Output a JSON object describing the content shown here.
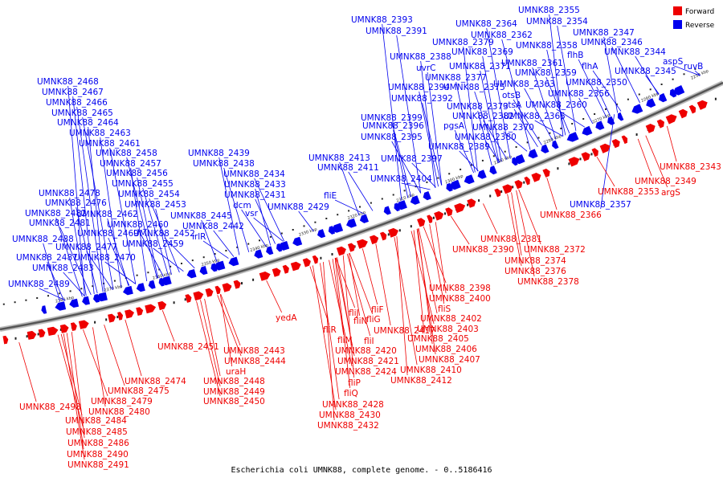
{
  "caption": "Escherichia coli UMNK88, complete genome. - 0..5186416",
  "legend": {
    "forward": {
      "label": "Forward",
      "color": "#ee0000"
    },
    "reverse": {
      "label": "Reverse",
      "color": "#0000ee"
    }
  },
  "ticks": [
    "2250 kbp",
    "2260 kbp",
    "2270 kbp",
    "2280 kbp",
    "2290 kbp",
    "2300 kbp",
    "2310 kbp",
    "2320 kbp",
    "2330 kbp",
    "2340 kbp",
    "2350 kbp",
    "2360 kbp",
    "2370 kbp",
    "2380 kbp"
  ],
  "reverse_labels": [
    "UMNK88_2355",
    "UMNK88_2354",
    "UMNK88_2364",
    "UMNK88_2362",
    "UMNK88_2347",
    "UMNK88_2393",
    "UMNK88_2391",
    "UMNK88_2346",
    "UMNK88_2379",
    "UMNK88_2358",
    "UMNK88_2344",
    "flhB",
    "UMNK88_2388",
    "UMNK88_2369",
    "ruvB",
    "aspS",
    "uvrC",
    "UMNK88_2371",
    "UMNK88_2361",
    "flhA",
    "UMNK88_2345",
    "UMNK88_2377",
    "UMNK88_2359",
    "UMNK88_2363",
    "UMNK88_2350",
    "UMNK88_2394",
    "UMNK88_2375",
    "otsB",
    "UMNK88_2356",
    "UMNK88_2392",
    "otsA",
    "UMNK88_2360",
    "UMNK88_2373",
    "UMNK88_2399",
    "UMNK88_2382",
    "UMNK88_2365",
    "UMNK88_2396",
    "pgsA",
    "UMNK88_2370",
    "UMNK88_2395",
    "UMNK88_2380",
    "UMNK88_2389",
    "UMNK88_2397",
    "UMNK88_2404",
    "UMNK88_2357",
    "UMNK88_2413",
    "UMNK88_2411",
    "fliE",
    "UMNK88_2429",
    "UMNK88_2439",
    "UMNK88_2438",
    "UMNK88_2434",
    "UMNK88_2433",
    "UMNK88_2431",
    "dcm",
    "vsr",
    "UMNK88_2445",
    "UMNK88_2442",
    "irlR",
    "UMNK88_2452",
    "UMNK88_2468",
    "UMNK88_2467",
    "UMNK88_2466",
    "UMNK88_2465",
    "UMNK88_2464",
    "UMNK88_2463",
    "UMNK88_2461",
    "UMNK88_2458",
    "UMNK88_2457",
    "UMNK88_2456",
    "UMNK88_2455",
    "UMNK88_2454",
    "UMNK88_2453",
    "UMNK88_2462",
    "UMNK88_2460",
    "UMNK88_2459",
    "UMNK88_2478",
    "UMNK88_2476",
    "UMNK88_2482",
    "UMNK88_2481",
    "UMNK88_2488",
    "UMNK88_2469",
    "UMNK88_2477",
    "UMNK88_2470",
    "UMNK88_2487",
    "UMNK88_2483",
    "UMNK88_2489"
  ],
  "forward_labels": [
    "UMNK88_2343",
    "UMNK88_2349",
    "UMNK88_2353",
    "argS",
    "UMNK88_2366",
    "UMNK88_2381",
    "UMNK88_2390",
    "UMNK88_2372",
    "UMNK88_2374",
    "UMNK88_2376",
    "UMNK88_2378",
    "UMNK88_2398",
    "UMNK88_2400",
    "fliS",
    "UMNK88_2402",
    "UMNK88_2403",
    "UMNK88_2405",
    "UMNK88_2406",
    "UMNK88_2407",
    "UMNK88_2410",
    "UMNK88_2412",
    "fliF",
    "fliJ",
    "fliG",
    "fliN",
    "UMNK88_2417",
    "fliR",
    "fliI",
    "fliM",
    "UMNK88_2420",
    "UMNK88_2421",
    "UMNK88_2424",
    "fliP",
    "fliQ",
    "UMNK88_2428",
    "UMNK88_2430",
    "UMNK88_2432",
    "yedA",
    "UMNK88_2443",
    "UMNK88_2444",
    "uraH",
    "UMNK88_2448",
    "UMNK88_2449",
    "UMNK88_2450",
    "UMNK88_2451",
    "UMNK88_2474",
    "UMNK88_2475",
    "UMNK88_2479",
    "UMNK88_2480",
    "UMNK88_2498",
    "UMNK88_2484",
    "UMNK88_2485",
    "UMNK88_2486",
    "UMNK88_2490",
    "UMNK88_2491"
  ]
}
